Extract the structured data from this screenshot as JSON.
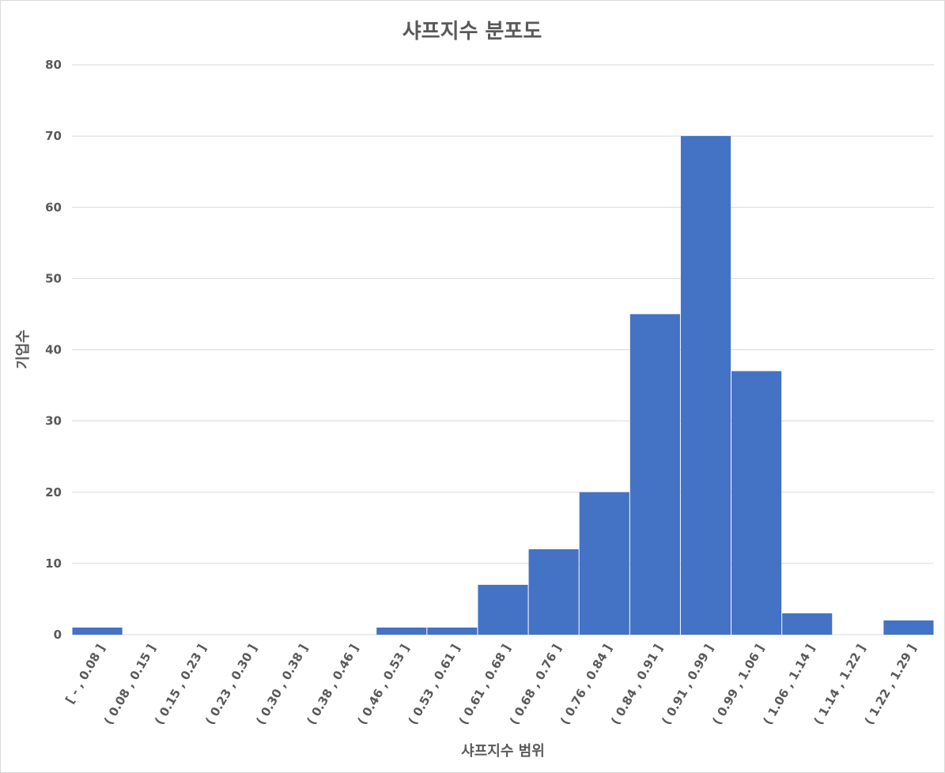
{
  "chart_data": {
    "type": "bar",
    "title": "샤프지수 분포도",
    "xlabel": "샤프지수 범위",
    "ylabel": "기업수",
    "ylim": [
      0,
      80
    ],
    "yticks": [
      0,
      10,
      20,
      30,
      40,
      50,
      60,
      70,
      80
    ],
    "grid": true,
    "legend": "none",
    "categories": [
      "[ - , 0.08 ]",
      "( 0.08 , 0.15 ]",
      "( 0.15 , 0.23 ]",
      "( 0.23 , 0.30 ]",
      "( 0.30 , 0.38 ]",
      "( 0.38 , 0.46 ]",
      "( 0.46 , 0.53 ]",
      "( 0.53 , 0.61 ]",
      "( 0.61 , 0.68 ]",
      "( 0.68 , 0.76 ]",
      "( 0.76 , 0.84 ]",
      "( 0.84 , 0.91 ]",
      "( 0.91 , 0.99 ]",
      "( 0.99 , 1.06 ]",
      "( 1.06 , 1.14 ]",
      "( 1.14 , 1.22 ]",
      "( 1.22 , 1.29 ]"
    ],
    "values": [
      1,
      0,
      0,
      0,
      0,
      0,
      1,
      1,
      7,
      12,
      20,
      45,
      70,
      37,
      3,
      0,
      2
    ],
    "bar_color": "#4472C4"
  }
}
